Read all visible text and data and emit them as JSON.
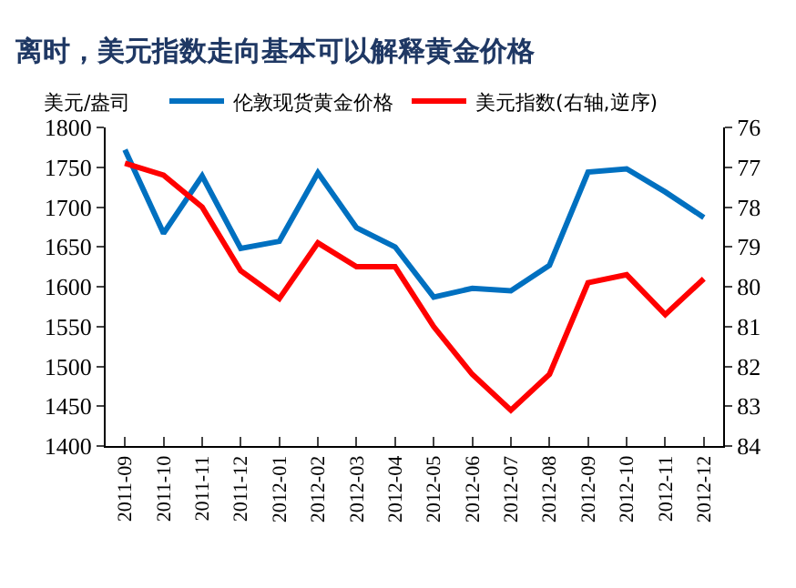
{
  "chart_data": {
    "type": "line",
    "title": "离时，美元指数走向基本可以解释黄金价格",
    "ylabel": "美元/盎司",
    "categories": [
      "2011-09",
      "2011-10",
      "2011-11",
      "2011-12",
      "2012-01",
      "2012-02",
      "2012-03",
      "2012-04",
      "2012-05",
      "2012-06",
      "2012-07",
      "2012-08",
      "2012-09",
      "2012-10",
      "2012-11",
      "2012-12"
    ],
    "series": [
      {
        "name": "伦敦现货黄金价格",
        "color": "#0070c0",
        "values": [
          1772,
          1667,
          1739,
          1648,
          1657,
          1743,
          1674,
          1650,
          1587,
          1598,
          1595,
          1627,
          1744,
          1748,
          1719,
          1687
        ]
      },
      {
        "name": "美元指数(右轴,逆序)",
        "color": "#ff0000",
        "axis": "y2",
        "values": [
          76.9,
          77.2,
          78.0,
          79.6,
          80.3,
          78.9,
          79.5,
          79.5,
          81.0,
          82.2,
          83.1,
          82.2,
          79.9,
          79.7,
          80.7,
          79.8
        ]
      }
    ],
    "ylim": [
      1400,
      1800
    ],
    "yticks": [
      1400,
      1450,
      1500,
      1550,
      1600,
      1650,
      1700,
      1750,
      1800
    ],
    "y2lim": [
      84,
      76
    ],
    "y2ticks": [
      76,
      77,
      78,
      79,
      80,
      81,
      82,
      83,
      84
    ],
    "legend": "top",
    "marker": "none",
    "line_style": "solid"
  }
}
